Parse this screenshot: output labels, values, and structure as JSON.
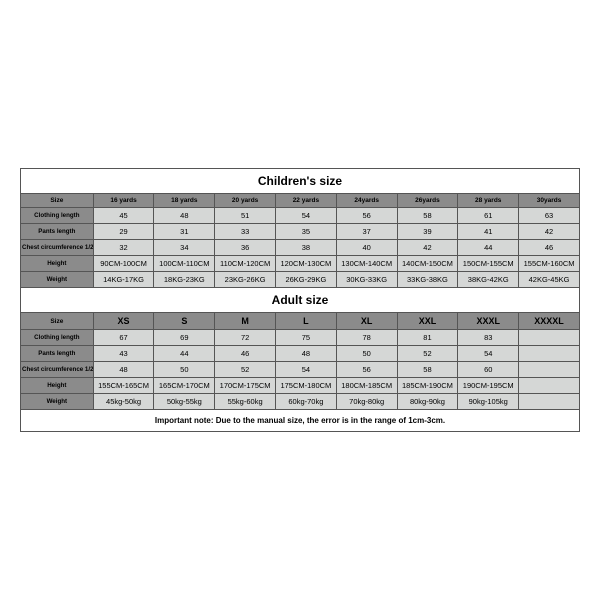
{
  "children": {
    "title": "Children's size",
    "headers": [
      "Size",
      "16 yards",
      "18 yards",
      "20 yards",
      "22 yards",
      "24yards",
      "26yards",
      "28 yards",
      "30yards"
    ],
    "rows": [
      {
        "label": "Clothing length",
        "cells": [
          "45",
          "48",
          "51",
          "54",
          "56",
          "58",
          "61",
          "63"
        ]
      },
      {
        "label": "Pants length",
        "cells": [
          "29",
          "31",
          "33",
          "35",
          "37",
          "39",
          "41",
          "42"
        ]
      },
      {
        "label": "Chest circumference 1/2",
        "cells": [
          "32",
          "34",
          "36",
          "38",
          "40",
          "42",
          "44",
          "46"
        ]
      },
      {
        "label": "Height",
        "cells": [
          "90CM-100CM",
          "100CM-110CM",
          "110CM-120CM",
          "120CM-130CM",
          "130CM-140CM",
          "140CM-150CM",
          "150CM-155CM",
          "155CM-160CM"
        ]
      },
      {
        "label": "Weight",
        "cells": [
          "14KG-17KG",
          "18KG-23KG",
          "23KG-26KG",
          "26KG-29KG",
          "30KG-33KG",
          "33KG-38KG",
          "38KG-42KG",
          "42KG-45KG"
        ]
      }
    ]
  },
  "adult": {
    "title": "Adult size",
    "headers": [
      "Size",
      "XS",
      "S",
      "M",
      "L",
      "XL",
      "XXL",
      "XXXL",
      "XXXXL"
    ],
    "rows": [
      {
        "label": "Clothing length",
        "cells": [
          "67",
          "69",
          "72",
          "75",
          "78",
          "81",
          "83",
          ""
        ]
      },
      {
        "label": "Pants length",
        "cells": [
          "43",
          "44",
          "46",
          "48",
          "50",
          "52",
          "54",
          ""
        ]
      },
      {
        "label": "Chest circumference 1/2",
        "cells": [
          "48",
          "50",
          "52",
          "54",
          "56",
          "58",
          "60",
          ""
        ]
      },
      {
        "label": "Height",
        "cells": [
          "155CM-165CM",
          "165CM-170CM",
          "170CM-175CM",
          "175CM-180CM",
          "180CM-185CM",
          "185CM-190CM",
          "190CM-195CM",
          ""
        ]
      },
      {
        "label": "Weight",
        "cells": [
          "45kg-50kg",
          "50kg-55kg",
          "55kg-60kg",
          "60kg-70kg",
          "70kg-80kg",
          "80kg-90kg",
          "90kg-105kg",
          ""
        ]
      }
    ]
  },
  "note": "Important note: Due to the manual size, the error is in the range of 1cm-3cm.",
  "style": {
    "header_bg": "#8b8b8b",
    "data_bg": "#d5d7d6",
    "border_color": "#555555",
    "title_fontsize": 12,
    "cell_fontsize": 7.5
  }
}
